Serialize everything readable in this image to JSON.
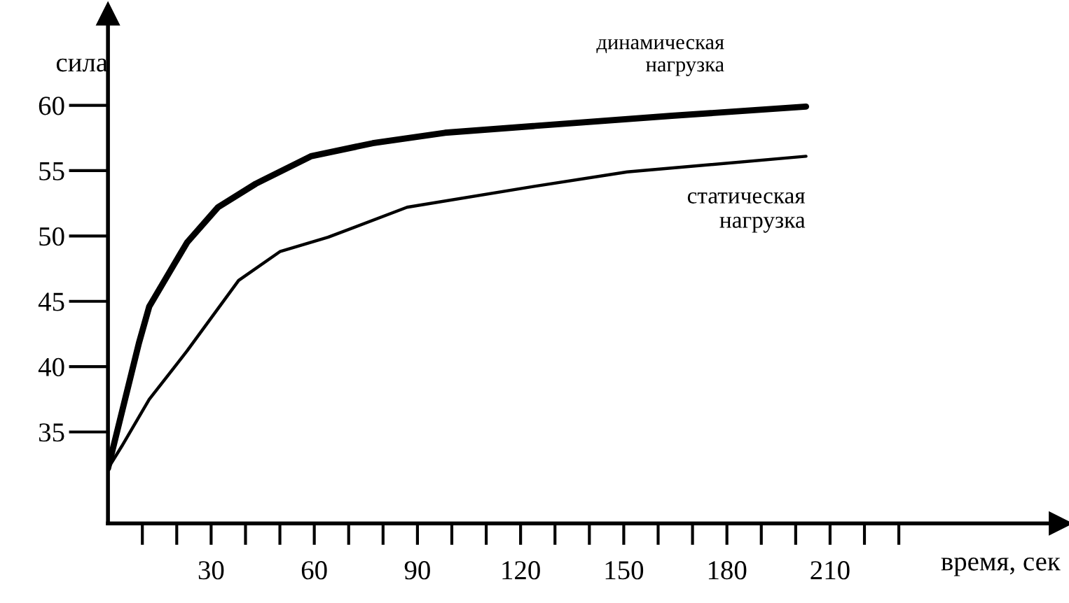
{
  "chart_data": {
    "type": "line",
    "xlabel": "время, сек",
    "ylabel": "сила",
    "xlim": [
      0,
      277
    ],
    "ylim": [
      28,
      67
    ],
    "xticks": [
      {
        "value": 10,
        "label": null
      },
      {
        "value": 20,
        "label": null
      },
      30,
      {
        "value": 40,
        "label": null
      },
      {
        "value": 50,
        "label": null
      },
      60,
      {
        "value": 70,
        "label": null
      },
      {
        "value": 80,
        "label": null
      },
      90,
      {
        "value": 100,
        "label": null
      },
      {
        "value": 110,
        "label": null
      },
      120,
      {
        "value": 130,
        "label": null
      },
      {
        "value": 140,
        "label": null
      },
      150,
      {
        "value": 160,
        "label": null
      },
      {
        "value": 170,
        "label": null
      },
      180,
      {
        "value": 190,
        "label": null
      },
      {
        "value": 200,
        "label": null
      },
      210,
      {
        "value": 220,
        "label": null
      },
      {
        "value": 230,
        "label": null
      }
    ],
    "yticks": [
      35,
      40,
      45,
      50,
      55,
      60
    ],
    "grid": false,
    "legend": false,
    "marker": "none",
    "line_style": "solid",
    "series": [
      {
        "name": "динамическая нагрузка",
        "color": "#000000",
        "x": [
          0,
          9,
          12,
          23,
          32,
          43,
          59,
          77,
          98,
          123,
          164,
          203
        ],
        "values": [
          32.2,
          41.8,
          44.6,
          49.5,
          52.2,
          54.0,
          56.1,
          57.1,
          57.9,
          58.4,
          59.2,
          59.9
        ]
      },
      {
        "name": "статическая нагрузка",
        "color": "#000000",
        "x": [
          0,
          4,
          12,
          23,
          38,
          50,
          64,
          87,
          124,
          151,
          203
        ],
        "values": [
          32.2,
          33.9,
          37.5,
          41.2,
          46.6,
          48.8,
          49.9,
          52.2,
          53.8,
          54.9,
          56.1
        ]
      }
    ]
  }
}
